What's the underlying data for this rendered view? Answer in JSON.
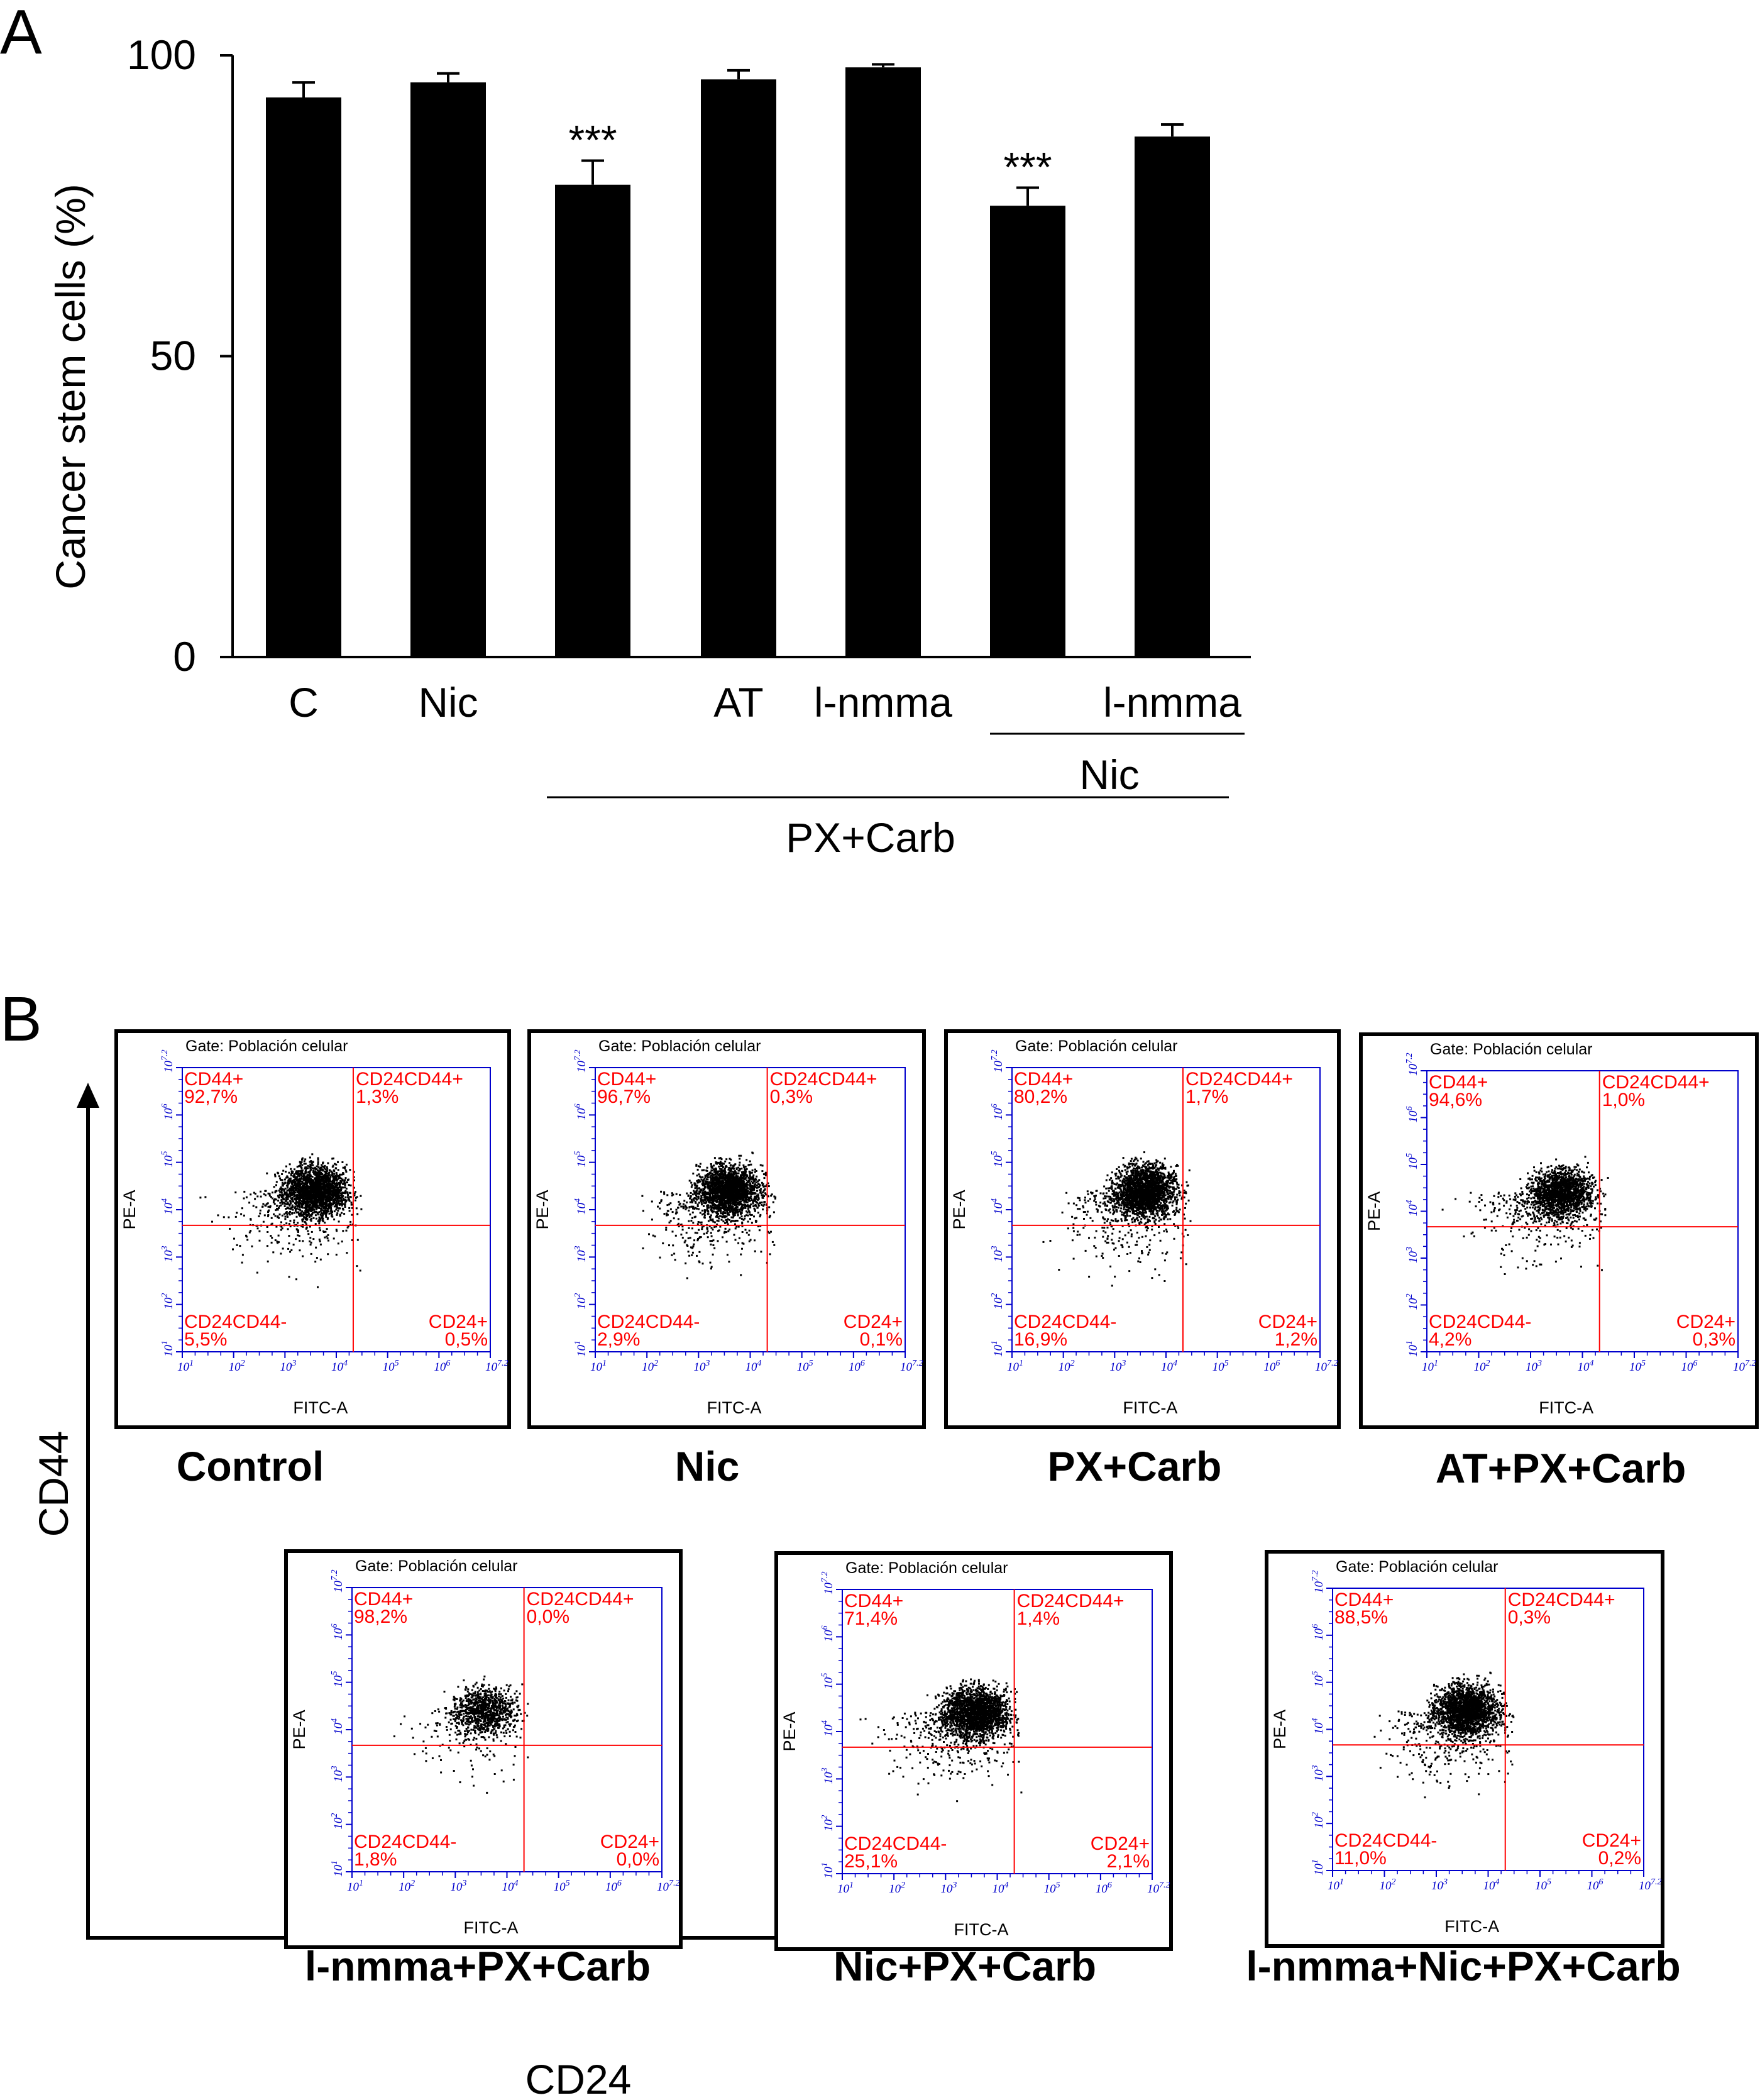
{
  "panels": {
    "a": "A",
    "b": "B"
  },
  "chart_data": {
    "type": "bar",
    "ylabel": "Cancer stem cells (%)",
    "ylim": [
      0,
      100
    ],
    "yticks": [
      0,
      50,
      100
    ],
    "categories": [
      "C",
      "Nic",
      "",
      "AT",
      "l-nmma",
      "",
      "l-nmma"
    ],
    "values": [
      93,
      95.5,
      78.5,
      96,
      98,
      75,
      86.5
    ],
    "errors": [
      2.5,
      1.5,
      4,
      1.5,
      0.5,
      3,
      2
    ],
    "significance": [
      "",
      "",
      "***",
      "",
      "",
      "***",
      ""
    ],
    "group_labels": {
      "nic": "Nic",
      "pxcarb": "PX+Carb"
    }
  },
  "flow": {
    "axis_y": "CD44",
    "axis_x": "CD24",
    "gate_text": "Gate:  Población celular",
    "axis_pe": "PE-A",
    "axis_fitc": "FITC-A",
    "tick_labels": [
      "10^1",
      "10^2",
      "10^3",
      "10^4",
      "10^5",
      "10^6",
      "10^7.2"
    ],
    "quadrant_names": {
      "ul": "CD44+",
      "ur": "CD24CD44+",
      "ll": "CD24CD44-",
      "lr": "CD24+"
    },
    "plots": [
      {
        "title": "Control",
        "ul": "92,7%",
        "ur": "1,3%",
        "ll": "5,5%",
        "lr": "0,5%",
        "density": 1.0
      },
      {
        "title": "Nic",
        "ul": "96,7%",
        "ur": "0,3%",
        "ll": "2,9%",
        "lr": "0,1%",
        "density": 1.0
      },
      {
        "title": "PX+Carb",
        "ul": "80,2%",
        "ur": "1,7%",
        "ll": "16,9%",
        "lr": "1,2%",
        "density": 1.0
      },
      {
        "title": "AT+PX+Carb",
        "ul": "94,6%",
        "ur": "1,0%",
        "ll": "4,2%",
        "lr": "0,3%",
        "density": 0.8
      },
      {
        "title": "l-nmma+PX+Carb",
        "ul": "98,2%",
        "ur": "0,0%",
        "ll": "1,8%",
        "lr": "0,0%",
        "density": 0.45
      },
      {
        "title": "Nic+PX+Carb",
        "ul": "71,4%",
        "ur": "1,4%",
        "ll": "25,1%",
        "lr": "2,1%",
        "density": 1.0
      },
      {
        "title": "l-nmma+Nic+PX+Carb",
        "ul": "88,5%",
        "ur": "0,3%",
        "ll": "11,0%",
        "lr": "0,2%",
        "density": 1.0
      }
    ]
  }
}
